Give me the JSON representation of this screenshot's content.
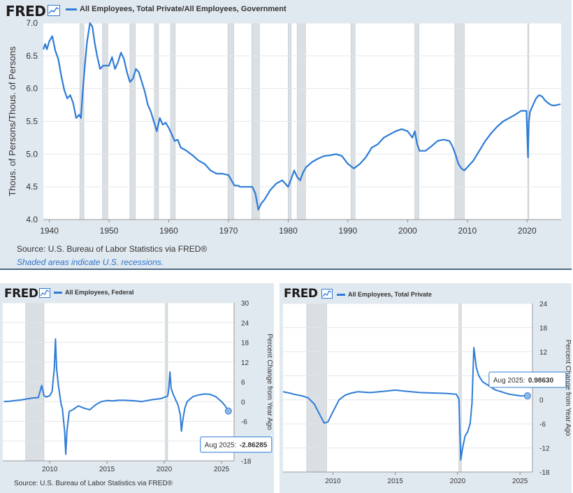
{
  "colors": {
    "line": "#2e7cd6",
    "recession": "#dadfe4",
    "panel_bg": "#e1e9f0",
    "plot_bg": "#ffffff"
  },
  "logo": {
    "text": "FRED",
    "icon": "line-chart-icon"
  },
  "top": {
    "legend": "All Employees, Total Private/All Employees, Government",
    "source": "Source: U.S. Bureau of Labor Statistics via FRED®",
    "note": "Shaded areas indicate U.S. recessions."
  },
  "bottom_left": {
    "legend": "All Employees, Federal",
    "source": "Source: U.S. Bureau of Labor Statistics via FRED®",
    "tooltip_label": "Aug 2025:",
    "tooltip_value": "-2.86285"
  },
  "bottom_right": {
    "legend": "All Employees, Total Private",
    "tooltip_label": "Aug 2025:",
    "tooltip_value": "0.98630"
  },
  "chart_data": [
    {
      "type": "line",
      "ylabel": "Thous. of Persons/Thous. of Persons",
      "ylim": [
        4.0,
        7.0
      ],
      "yticks": [
        4.0,
        4.5,
        5.0,
        5.5,
        6.0,
        6.5,
        7.0
      ],
      "yticklabels": [
        "4.0",
        "4.5",
        "5.0",
        "5.5",
        "6.0",
        "6.5",
        "7.0"
      ],
      "xlim": [
        1939,
        2025.7
      ],
      "xticks": [
        1940,
        1950,
        1960,
        1970,
        1980,
        1990,
        2000,
        2010,
        2020
      ],
      "recessions": [
        [
          1945.1,
          1945.8
        ],
        [
          1948.9,
          1949.8
        ],
        [
          1953.5,
          1954.4
        ],
        [
          1957.6,
          1958.3
        ],
        [
          1960.3,
          1961.1
        ],
        [
          1969.9,
          1970.9
        ],
        [
          1973.9,
          1975.2
        ],
        [
          1980.0,
          1980.5
        ],
        [
          1981.5,
          1982.9
        ],
        [
          1990.5,
          1991.2
        ],
        [
          2001.2,
          2001.9
        ],
        [
          2007.9,
          2009.5
        ],
        [
          2020.1,
          2020.3
        ]
      ],
      "series": [
        {
          "name": "",
          "x": [
            1939.0,
            1939.3,
            1939.6,
            1940.0,
            1940.5,
            1941.0,
            1941.5,
            1942.0,
            1942.5,
            1943.0,
            1943.5,
            1944.0,
            1944.5,
            1945.0,
            1945.3,
            1945.6,
            1945.9,
            1946.3,
            1946.8,
            1947.2,
            1947.6,
            1948.0,
            1948.5,
            1949.0,
            1949.5,
            1950.0,
            1950.5,
            1951.0,
            1951.5,
            1952.0,
            1952.5,
            1953.0,
            1953.5,
            1954.0,
            1954.5,
            1955.0,
            1955.5,
            1956.0,
            1956.5,
            1957.0,
            1957.5,
            1958.0,
            1958.5,
            1959.0,
            1959.5,
            1960.0,
            1960.5,
            1961.0,
            1961.5,
            1962.0,
            1963.0,
            1964.0,
            1965.0,
            1966.0,
            1967.0,
            1968.0,
            1969.0,
            1970.0,
            1970.5,
            1971.0,
            1971.5,
            1972.0,
            1973.0,
            1974.0,
            1974.5,
            1975.0,
            1975.5,
            1976.0,
            1977.0,
            1978.0,
            1979.0,
            1980.0,
            1980.5,
            1981.0,
            1981.5,
            1982.0,
            1982.5,
            1983.0,
            1984.0,
            1985.0,
            1986.0,
            1987.0,
            1988.0,
            1989.0,
            1990.0,
            1991.0,
            1992.0,
            1993.0,
            1994.0,
            1995.0,
            1996.0,
            1997.0,
            1998.0,
            1999.0,
            2000.0,
            2000.8,
            2001.2,
            2001.6,
            2002.0,
            2003.0,
            2004.0,
            2005.0,
            2006.0,
            2007.0,
            2007.5,
            2008.0,
            2008.5,
            2009.0,
            2009.5,
            2010.0,
            2011.0,
            2012.0,
            2013.0,
            2014.0,
            2015.0,
            2016.0,
            2017.0,
            2018.0,
            2019.0,
            2019.9,
            2020.15,
            2020.3,
            2020.5,
            2021.0,
            2021.5,
            2022.0,
            2022.5,
            2023.0,
            2023.5,
            2024.0,
            2024.5,
            2025.0,
            2025.6
          ],
          "y": [
            6.6,
            6.68,
            6.6,
            6.72,
            6.8,
            6.58,
            6.45,
            6.2,
            5.98,
            5.85,
            5.9,
            5.78,
            5.55,
            5.6,
            5.55,
            5.95,
            6.3,
            6.7,
            7.0,
            6.95,
            6.7,
            6.5,
            6.3,
            6.35,
            6.35,
            6.35,
            6.48,
            6.3,
            6.4,
            6.55,
            6.45,
            6.25,
            6.1,
            6.15,
            6.3,
            6.25,
            6.1,
            5.95,
            5.75,
            5.65,
            5.5,
            5.35,
            5.55,
            5.45,
            5.48,
            5.4,
            5.3,
            5.2,
            5.22,
            5.1,
            5.05,
            4.98,
            4.9,
            4.85,
            4.75,
            4.7,
            4.7,
            4.68,
            4.6,
            4.52,
            4.52,
            4.5,
            4.5,
            4.5,
            4.4,
            4.15,
            4.25,
            4.3,
            4.45,
            4.55,
            4.6,
            4.5,
            4.62,
            4.75,
            4.65,
            4.6,
            4.72,
            4.8,
            4.88,
            4.93,
            4.97,
            4.98,
            5.0,
            4.97,
            4.85,
            4.78,
            4.85,
            4.95,
            5.1,
            5.15,
            5.25,
            5.3,
            5.35,
            5.38,
            5.35,
            5.25,
            5.35,
            5.15,
            5.05,
            5.05,
            5.12,
            5.2,
            5.22,
            5.2,
            5.12,
            5.0,
            4.85,
            4.78,
            4.75,
            4.8,
            4.9,
            5.05,
            5.2,
            5.32,
            5.42,
            5.5,
            5.55,
            5.6,
            5.66,
            5.66,
            4.95,
            5.5,
            5.65,
            5.75,
            5.85,
            5.9,
            5.88,
            5.82,
            5.78,
            5.75,
            5.74,
            5.75,
            5.76
          ]
        }
      ]
    },
    {
      "type": "line",
      "ylabel": "Percent Change from Year Ago",
      "ylim": [
        -18,
        30
      ],
      "yticks": [
        -18,
        -12,
        -6,
        0,
        6,
        12,
        18,
        24,
        30
      ],
      "yticklabels": [
        "-18",
        "-12",
        "-6",
        "0",
        "6",
        "12",
        "18",
        "24",
        "30"
      ],
      "xlim": [
        2005.9,
        2026.1
      ],
      "xticks": [
        2010,
        2015,
        2020,
        2025
      ],
      "recessions": [
        [
          2007.9,
          2009.5
        ],
        [
          2020.1,
          2020.3
        ]
      ],
      "series": [
        {
          "name": "",
          "x": [
            2006.0,
            2006.5,
            2007.0,
            2007.5,
            2008.0,
            2008.5,
            2009.0,
            2009.3,
            2009.5,
            2009.7,
            2010.0,
            2010.2,
            2010.4,
            2010.5,
            2010.6,
            2010.75,
            2010.9,
            2011.0,
            2011.1,
            2011.3,
            2011.4,
            2011.5,
            2011.7,
            2012.0,
            2012.5,
            2013.0,
            2013.5,
            2014.0,
            2014.5,
            2015.0,
            2015.5,
            2016.0,
            2016.5,
            2017.0,
            2017.5,
            2018.0,
            2018.5,
            2019.0,
            2019.5,
            2019.8,
            2020.0,
            2020.2,
            2020.3,
            2020.4,
            2020.5,
            2020.6,
            2020.8,
            2021.0,
            2021.2,
            2021.4,
            2021.5,
            2021.6,
            2021.8,
            2022.0,
            2022.5,
            2023.0,
            2023.5,
            2024.0,
            2024.5,
            2025.0,
            2025.3,
            2025.6
          ],
          "y": [
            0.0,
            0.1,
            0.3,
            0.5,
            0.8,
            1.1,
            1.2,
            4.9,
            1.8,
            1.4,
            1.8,
            3.0,
            10.0,
            19.0,
            10.0,
            5.0,
            1.5,
            -1.0,
            -2.0,
            -9.0,
            -16.0,
            -9.0,
            -3.0,
            -2.5,
            -1.3,
            -2.0,
            -2.5,
            -1.0,
            0.0,
            0.3,
            0.2,
            0.4,
            0.4,
            0.3,
            0.2,
            0.0,
            0.3,
            0.6,
            0.8,
            1.0,
            1.3,
            1.5,
            1.7,
            4.0,
            9.0,
            4.0,
            2.0,
            0.5,
            -1.0,
            -4.0,
            -9.0,
            -6.0,
            -2.0,
            0.0,
            1.5,
            2.0,
            2.3,
            2.2,
            1.5,
            0.0,
            -1.2,
            -2.86285
          ]
        }
      ]
    },
    {
      "type": "line",
      "ylabel": "Percent Change from Year Ago",
      "ylim": [
        -18,
        24
      ],
      "yticks": [
        -18,
        -12,
        -6,
        0,
        6,
        12,
        18,
        24
      ],
      "yticklabels": [
        "-18",
        "-12",
        "-6",
        "0",
        "6",
        "12",
        "18",
        "24"
      ],
      "xlim": [
        2006.0,
        2026.0
      ],
      "xticks": [
        2010,
        2015,
        2020,
        2025
      ],
      "recessions": [
        [
          2007.9,
          2009.5
        ],
        [
          2020.1,
          2020.3
        ]
      ],
      "series": [
        {
          "name": "",
          "x": [
            2006.0,
            2006.5,
            2007.0,
            2007.5,
            2008.0,
            2008.5,
            2009.0,
            2009.3,
            2009.6,
            2010.0,
            2010.5,
            2011.0,
            2011.5,
            2012.0,
            2013.0,
            2014.0,
            2015.0,
            2016.0,
            2017.0,
            2018.0,
            2019.0,
            2019.9,
            2020.1,
            2020.25,
            2020.4,
            2020.6,
            2020.8,
            2021.0,
            2021.15,
            2021.3,
            2021.5,
            2021.7,
            2022.0,
            2022.5,
            2023.0,
            2023.5,
            2024.0,
            2024.5,
            2025.0,
            2025.6
          ],
          "y": [
            2.0,
            1.7,
            1.3,
            1.0,
            0.5,
            -1.0,
            -4.0,
            -5.8,
            -5.5,
            -3.0,
            0.0,
            1.2,
            1.7,
            2.0,
            1.8,
            2.1,
            2.4,
            2.1,
            1.8,
            1.7,
            1.6,
            1.4,
            0.2,
            -15.0,
            -12.0,
            -9.0,
            -8.0,
            -6.0,
            -1.0,
            13.0,
            8.0,
            6.0,
            4.5,
            3.5,
            2.5,
            2.0,
            1.5,
            1.2,
            1.0,
            0.9863
          ]
        }
      ]
    }
  ]
}
